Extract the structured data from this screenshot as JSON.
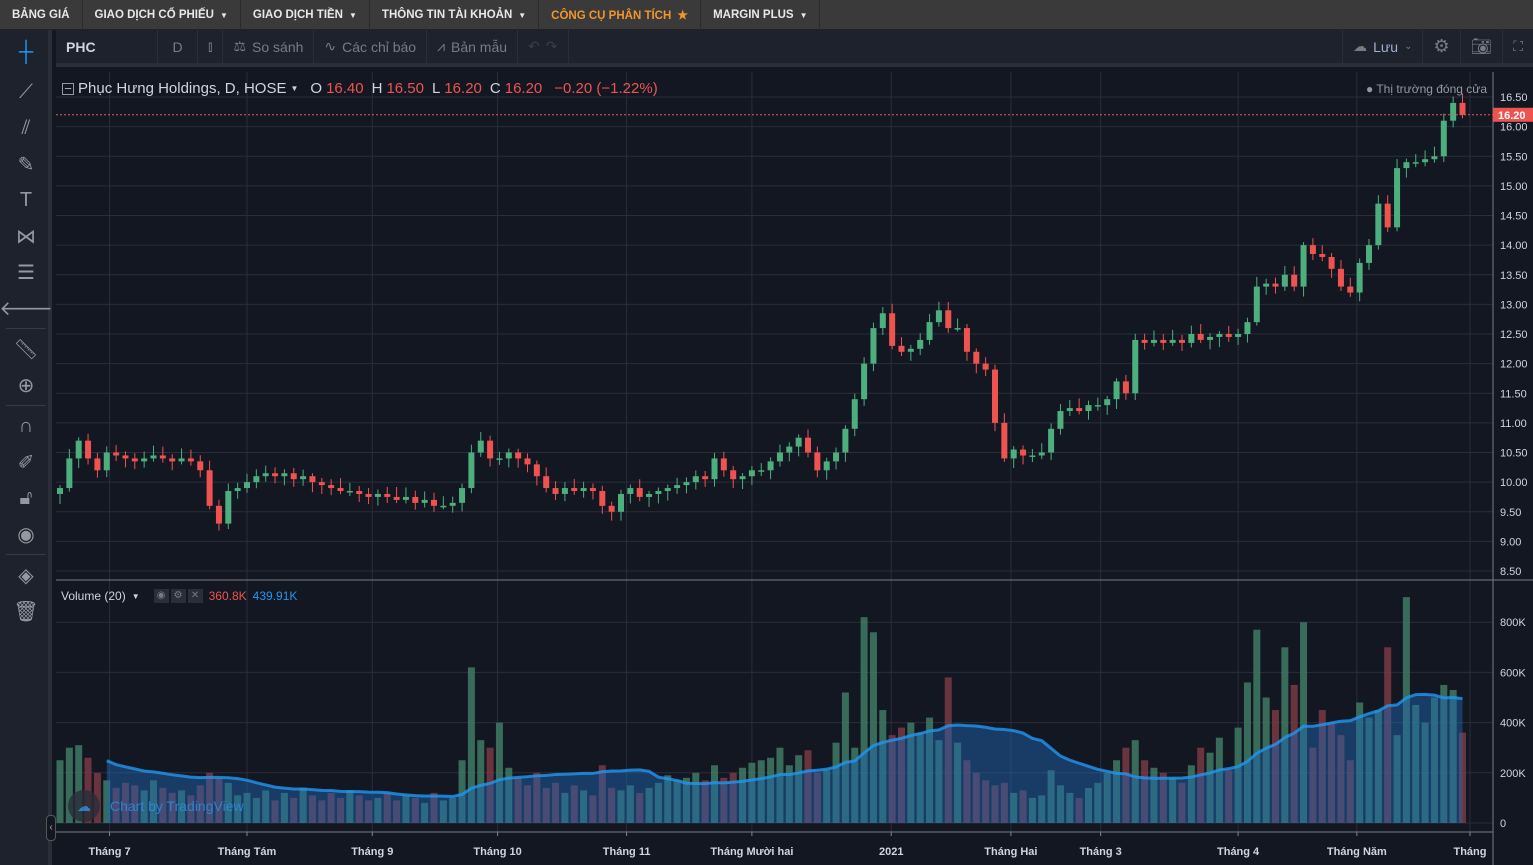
{
  "nav": [
    {
      "label": "BẢNG GIÁ",
      "dd": false
    },
    {
      "label": "GIAO DỊCH CỔ PHIẾU",
      "dd": true
    },
    {
      "label": "GIAO DỊCH TIỀN",
      "dd": true
    },
    {
      "label": "THÔNG TIN TÀI KHOẢN",
      "dd": true
    },
    {
      "label": "CÔNG CỤ PHÂN TÍCH",
      "star": true
    },
    {
      "label": "MARGIN PLUS",
      "dd": true
    }
  ],
  "toolbar": {
    "symbol": "PHC",
    "interval": "D",
    "compare": "So sánh",
    "indicators": "Các chỉ báo",
    "templates": "Bản mẫu",
    "save": "Lưu"
  },
  "legend": {
    "title": "Phục Hưng Holdings, D, HOSE",
    "o_label": "O",
    "o": "16.40",
    "h_label": "H",
    "h": "16.50",
    "l_label": "L",
    "l": "16.20",
    "c_label": "C",
    "c": "16.20",
    "change": "−0.20 (−1.22%)"
  },
  "market_status": "Thị trường đóng cửa",
  "volume_legend": {
    "title": "Volume (20)",
    "value": "360.8K",
    "ma": "439.91K"
  },
  "watermark": "Chart by TradingView",
  "colors": {
    "up": "#4caf7d",
    "down": "#ef5350",
    "ma": "#2196f3",
    "bg": "#131722"
  },
  "chart_data": {
    "type": "candlestick",
    "symbol": "PHC",
    "last_price": "16.20",
    "price_ticks": [
      "16.50",
      "16.00",
      "15.50",
      "15.00",
      "14.50",
      "14.00",
      "13.50",
      "13.00",
      "12.50",
      "12.00",
      "11.50",
      "11.00",
      "10.50",
      "10.00",
      "9.50",
      "9.00",
      "8.50"
    ],
    "ylim": [
      8.4,
      16.7
    ],
    "volume_ticks": [
      "800K",
      "600K",
      "400K",
      "200K",
      "0"
    ],
    "volume_max_k": 860,
    "time_labels": [
      {
        "label": "Tháng 7",
        "i": 5.3
      },
      {
        "label": "Tháng Tám",
        "i": 20
      },
      {
        "label": "Tháng 9",
        "i": 33.4
      },
      {
        "label": "Tháng 10",
        "i": 46.8
      },
      {
        "label": "Tháng 11",
        "i": 60.6
      },
      {
        "label": "Tháng Mười hai",
        "i": 74
      },
      {
        "label": "2021",
        "i": 88.9
      },
      {
        "label": "Tháng Hai",
        "i": 101.7
      },
      {
        "label": "Tháng 3",
        "i": 111.3
      },
      {
        "label": "Tháng 4",
        "i": 126
      },
      {
        "label": "Tháng Năm",
        "i": 138.7
      },
      {
        "label": "Tháng",
        "i": 150.8
      }
    ],
    "close": [
      9.9,
      10.4,
      10.7,
      10.4,
      10.2,
      10.5,
      10.45,
      10.4,
      10.35,
      10.4,
      10.45,
      10.4,
      10.35,
      10.4,
      10.35,
      10.2,
      9.6,
      9.3,
      9.85,
      9.9,
      10.0,
      10.1,
      10.15,
      10.1,
      10.15,
      10.05,
      10.1,
      10.0,
      9.95,
      9.9,
      9.85,
      9.85,
      9.8,
      9.75,
      9.8,
      9.75,
      9.7,
      9.75,
      9.65,
      9.7,
      9.6,
      9.6,
      9.65,
      9.9,
      10.5,
      10.7,
      10.4,
      10.4,
      10.5,
      10.4,
      10.3,
      10.1,
      9.9,
      9.8,
      9.9,
      9.85,
      9.9,
      9.85,
      9.6,
      9.5,
      9.8,
      9.9,
      9.75,
      9.8,
      9.85,
      9.9,
      9.95,
      10.0,
      10.1,
      10.05,
      10.4,
      10.2,
      10.05,
      10.1,
      10.2,
      10.2,
      10.35,
      10.5,
      10.6,
      10.75,
      10.5,
      10.2,
      10.35,
      10.5,
      10.9,
      11.4,
      12.0,
      12.6,
      12.85,
      12.3,
      12.2,
      12.25,
      12.4,
      12.7,
      12.9,
      12.6,
      12.6,
      12.2,
      12.0,
      11.9,
      11.0,
      10.4,
      10.55,
      10.45,
      10.45,
      10.5,
      10.9,
      11.2,
      11.25,
      11.2,
      11.3,
      11.3,
      11.4,
      11.7,
      11.5,
      12.4,
      12.35,
      12.4,
      12.35,
      12.4,
      12.35,
      12.5,
      12.4,
      12.45,
      12.5,
      12.45,
      12.5,
      12.7,
      13.3,
      13.35,
      13.3,
      13.5,
      13.3,
      14.0,
      13.85,
      13.8,
      13.6,
      13.3,
      13.2,
      13.7,
      14.0,
      14.7,
      14.3,
      15.3,
      15.4,
      15.4,
      15.45,
      15.5,
      16.1,
      16.4,
      16.2
    ],
    "first_open": 9.8,
    "volume_k": [
      250,
      300,
      310,
      260,
      200,
      170,
      140,
      160,
      150,
      130,
      170,
      140,
      120,
      130,
      110,
      150,
      200,
      180,
      160,
      110,
      120,
      100,
      130,
      90,
      120,
      100,
      140,
      110,
      90,
      120,
      100,
      130,
      110,
      90,
      100,
      120,
      90,
      110,
      100,
      80,
      120,
      90,
      100,
      250,
      620,
      330,
      300,
      400,
      220,
      180,
      150,
      200,
      140,
      160,
      120,
      150,
      130,
      110,
      230,
      140,
      130,
      150,
      120,
      140,
      160,
      190,
      170,
      180,
      200,
      170,
      230,
      180,
      200,
      220,
      240,
      250,
      260,
      300,
      230,
      270,
      290,
      200,
      210,
      320,
      520,
      300,
      820,
      760,
      450,
      350,
      380,
      400,
      360,
      420,
      330,
      580,
      320,
      250,
      200,
      170,
      150,
      160,
      120,
      130,
      100,
      110,
      210,
      150,
      120,
      100,
      140,
      160,
      200,
      250,
      300,
      330,
      250,
      220,
      200,
      180,
      160,
      230,
      300,
      280,
      340,
      210,
      380,
      560,
      770,
      500,
      450,
      700,
      550,
      800,
      300,
      450,
      400,
      350,
      250,
      480,
      420,
      450,
      700,
      350,
      900,
      470,
      400,
      500,
      550,
      530,
      360
    ]
  }
}
